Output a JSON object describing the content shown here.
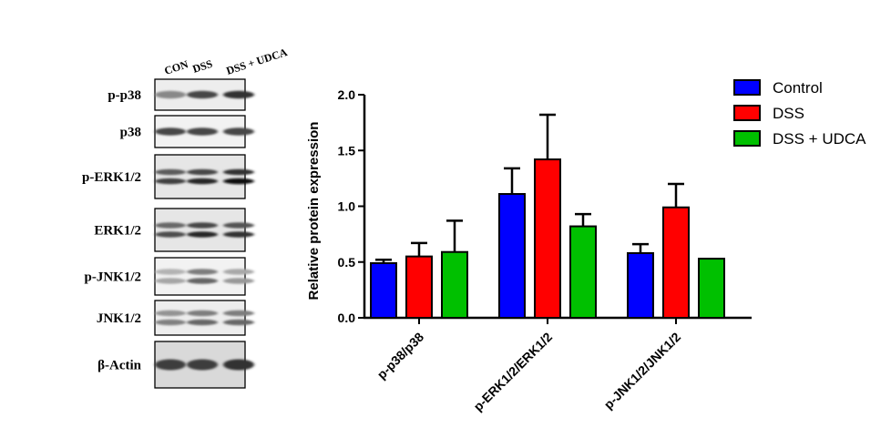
{
  "blot": {
    "lanes": [
      "CON",
      "DSS",
      "DSS + UDCA"
    ],
    "panels": [
      {
        "label": "p-p38",
        "bands": 1,
        "intensity": [
          0.55,
          0.85,
          0.95
        ],
        "bg": [
          0.93,
          0.92,
          0.9
        ]
      },
      {
        "label": "p38",
        "bands": 1,
        "intensity": [
          0.85,
          0.85,
          0.85
        ],
        "bg": [
          0.95
        ]
      },
      {
        "label": "p-ERK1/2",
        "bands": 2,
        "intensity": [
          0.75,
          0.85,
          0.95
        ],
        "bg": [
          0.9
        ]
      },
      {
        "label": "ERK1/2",
        "bands": 2,
        "intensity": [
          0.7,
          0.85,
          0.8
        ],
        "bg": [
          0.9
        ]
      },
      {
        "label": "p-JNK1/2",
        "bands": 2,
        "intensity": [
          0.35,
          0.6,
          0.4
        ],
        "bg": [
          0.95
        ]
      },
      {
        "label": "JNK1/2",
        "bands": 2,
        "intensity": [
          0.5,
          0.6,
          0.6
        ],
        "bg": [
          0.93
        ]
      },
      {
        "label": "β-Actin",
        "bands": 1,
        "intensity": [
          0.9,
          0.9,
          0.95
        ],
        "bg": [
          0.85
        ]
      }
    ]
  },
  "chart_data": {
    "type": "bar",
    "categories": [
      "p-p38/p38",
      "p-ERK1/2/ERK1/2",
      "p-JNK1/2/JNK1/2"
    ],
    "series": [
      {
        "name": "Control",
        "color": "#0000ff",
        "values": [
          0.49,
          1.11,
          0.58
        ],
        "errors": [
          0.03,
          0.23,
          0.08
        ]
      },
      {
        "name": "DSS",
        "color": "#ff0000",
        "values": [
          0.55,
          1.42,
          0.99
        ],
        "errors": [
          0.12,
          0.4,
          0.21
        ]
      },
      {
        "name": "DSS + UDCA",
        "color": "#00c000",
        "values": [
          0.59,
          0.82,
          0.53
        ],
        "errors": [
          0.28,
          0.11,
          0.0
        ]
      }
    ],
    "ylabel": "Relative protein expression",
    "xlabel": "",
    "ylim": [
      0,
      2.0
    ],
    "yticks": [
      0.0,
      0.5,
      1.0,
      1.5,
      2.0
    ],
    "ytick_labels": [
      "0.0",
      "0.5",
      "1.0",
      "1.5",
      "2.0"
    ],
    "legend_position": "top-right",
    "grid": false
  }
}
